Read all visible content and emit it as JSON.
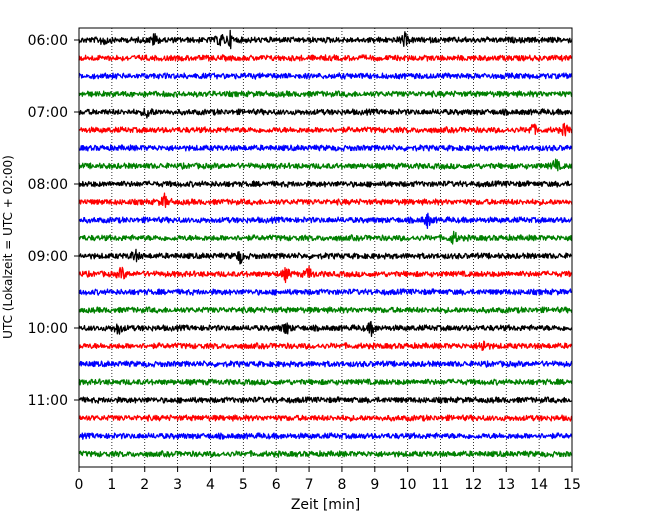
{
  "chart_data": {
    "type": "line",
    "title": "",
    "xlabel": "Zeit  [min]",
    "ylabel": "UTC (Lokalzeit = UTC + 02:00)",
    "xlim": [
      0,
      15
    ],
    "x_ticks": [
      "0",
      "1",
      "2",
      "3",
      "4",
      "5",
      "6",
      "7",
      "8",
      "9",
      "10",
      "11",
      "12",
      "13",
      "14",
      "15"
    ],
    "y_tick_labels": [
      "06:00",
      "07:00",
      "08:00",
      "09:00",
      "10:00",
      "11:00"
    ],
    "y_tick_row_index": [
      0,
      4,
      8,
      12,
      16,
      20
    ],
    "grid": "vertical dotted",
    "colors": [
      "#000000",
      "#ff0000",
      "#0000ff",
      "#008000"
    ],
    "row_interval_minutes": 15,
    "rows": [
      {
        "start": "06:00",
        "color": "#000000",
        "events_min": [
          0.75,
          2.3,
          4.3,
          4.6,
          9.9
        ]
      },
      {
        "start": "06:15",
        "color": "#ff0000",
        "events_min": []
      },
      {
        "start": "06:30",
        "color": "#0000ff",
        "events_min": []
      },
      {
        "start": "06:45",
        "color": "#008000",
        "events_min": []
      },
      {
        "start": "07:00",
        "color": "#000000",
        "events_min": [
          2.1
        ]
      },
      {
        "start": "07:15",
        "color": "#ff0000",
        "events_min": [
          13.8,
          14.8
        ]
      },
      {
        "start": "07:30",
        "color": "#0000ff",
        "events_min": []
      },
      {
        "start": "07:45",
        "color": "#008000",
        "events_min": [
          14.5
        ]
      },
      {
        "start": "08:00",
        "color": "#000000",
        "events_min": []
      },
      {
        "start": "08:15",
        "color": "#ff0000",
        "events_min": [
          2.6
        ]
      },
      {
        "start": "08:30",
        "color": "#0000ff",
        "events_min": [
          10.6
        ]
      },
      {
        "start": "08:45",
        "color": "#008000",
        "events_min": [
          11.4
        ]
      },
      {
        "start": "09:00",
        "color": "#000000",
        "events_min": [
          1.7,
          4.9
        ]
      },
      {
        "start": "09:15",
        "color": "#ff0000",
        "events_min": [
          1.3,
          6.3,
          7.0
        ]
      },
      {
        "start": "09:30",
        "color": "#0000ff",
        "events_min": []
      },
      {
        "start": "09:45",
        "color": "#008000",
        "events_min": []
      },
      {
        "start": "10:00",
        "color": "#000000",
        "events_min": [
          1.2,
          6.3,
          8.9
        ]
      },
      {
        "start": "10:15",
        "color": "#ff0000",
        "events_min": [
          12.3
        ]
      },
      {
        "start": "10:30",
        "color": "#0000ff",
        "events_min": []
      },
      {
        "start": "10:45",
        "color": "#008000",
        "events_min": []
      },
      {
        "start": "11:00",
        "color": "#000000",
        "events_min": []
      },
      {
        "start": "11:15",
        "color": "#ff0000",
        "events_min": []
      },
      {
        "start": "11:30",
        "color": "#0000ff",
        "events_min": []
      },
      {
        "start": "11:45",
        "color": "#008000",
        "events_min": []
      }
    ]
  }
}
